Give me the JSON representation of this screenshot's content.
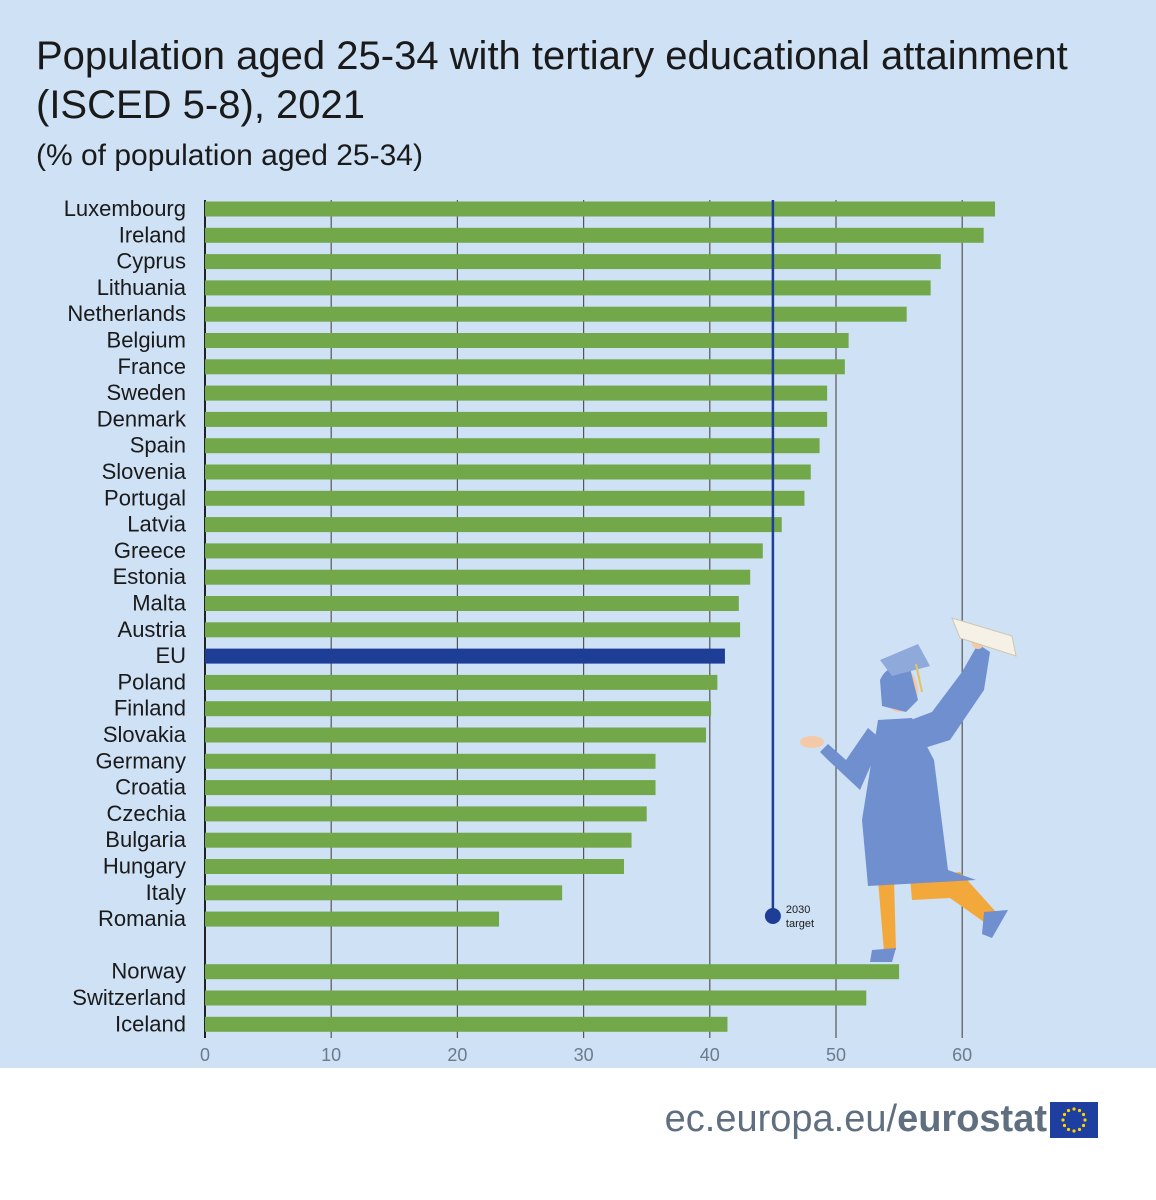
{
  "title": "Population aged 25-34 with tertiary educational attainment (ISCED 5-8), 2021",
  "subtitle": "(% of population aged 25-34)",
  "footer": {
    "url": "ec.europa.eu/",
    "brand": "eurostat"
  },
  "colors": {
    "bar": "#72a84a",
    "eu_bar": "#1e3d96",
    "target": "#1e3d96",
    "background": "#cfe1f5",
    "grid": "#555555"
  },
  "chart_data": {
    "type": "bar",
    "orientation": "horizontal",
    "title": "Population aged 25-34 with tertiary educational attainment (ISCED 5-8), 2021",
    "subtitle": "(% of population aged 25-34)",
    "xlabel": "",
    "ylabel": "",
    "xlim": [
      0,
      65
    ],
    "ticks": [
      0,
      10,
      20,
      30,
      40,
      50,
      60
    ],
    "grid": true,
    "categories": [
      "Luxembourg",
      "Ireland",
      "Cyprus",
      "Lithuania",
      "Netherlands",
      "Belgium",
      "France",
      "Sweden",
      "Denmark",
      "Spain",
      "Slovenia",
      "Portugal",
      "Latvia",
      "Greece",
      "Estonia",
      "Malta",
      "Austria",
      "EU",
      "Poland",
      "Finland",
      "Slovakia",
      "Germany",
      "Croatia",
      "Czechia",
      "Bulgaria",
      "Hungary",
      "Italy",
      "Romania",
      "Norway",
      "Switzerland",
      "Iceland"
    ],
    "values": [
      62.6,
      61.7,
      58.3,
      57.5,
      55.6,
      51.0,
      50.7,
      49.3,
      49.3,
      48.7,
      48.0,
      47.5,
      45.7,
      44.2,
      43.2,
      42.3,
      42.4,
      41.2,
      40.6,
      40.1,
      39.7,
      35.7,
      35.7,
      35.0,
      33.8,
      33.2,
      28.3,
      23.3,
      55.0,
      52.4,
      41.4
    ],
    "highlight": "EU",
    "group_break_after": "Romania",
    "target": {
      "value": 45,
      "label_lines": [
        "2030",
        "target"
      ]
    }
  }
}
